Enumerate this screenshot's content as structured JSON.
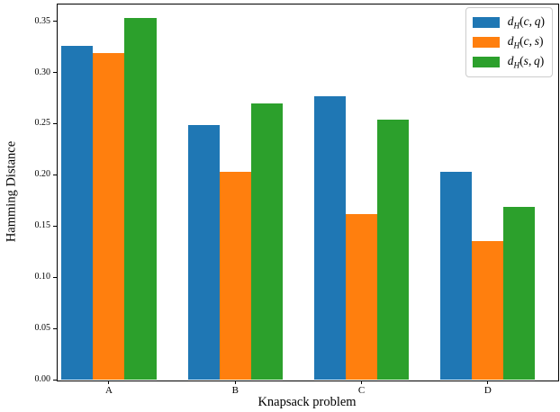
{
  "figure": {
    "background": "#ffffff"
  },
  "chart_data": {
    "type": "bar",
    "title": "",
    "xlabel": "Knapsack problem",
    "ylabel": "Hamming Distance",
    "categories": [
      "A",
      "B",
      "C",
      "D"
    ],
    "series": [
      {
        "name": "d_H(c, q)",
        "color": "#1f77b4",
        "values": [
          0.326,
          0.249,
          0.277,
          0.203
        ]
      },
      {
        "name": "d_H(c, s)",
        "color": "#ff7f0e",
        "values": [
          0.319,
          0.203,
          0.162,
          0.135
        ]
      },
      {
        "name": "d_H(s, q)",
        "color": "#2ca02c",
        "values": [
          0.353,
          0.27,
          0.254,
          0.169
        ]
      }
    ],
    "bar_width": 0.25,
    "xlim": [
      -0.413,
      3.55
    ],
    "ylim": [
      0,
      0.3673
    ],
    "yticks": [
      0,
      0.05,
      0.1,
      0.15,
      0.2,
      0.25,
      0.3,
      0.35
    ],
    "ytick_labels": [
      "0.00",
      "0.05",
      "0.10",
      "0.15",
      "0.20",
      "0.25",
      "0.30",
      "0.35"
    ],
    "grid": false,
    "legend_position": "upper right",
    "axis_color": "#000000"
  }
}
